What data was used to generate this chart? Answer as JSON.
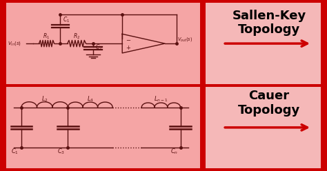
{
  "bg_color": "#f5a5a5",
  "border_color": "#cc0000",
  "right_panel_color": "#f5b8b8",
  "title1": "Sallen-Key\nTopology",
  "title2": "Cauer\nTopology",
  "title_color": "black",
  "arrow_color": "#cc0000",
  "component_color": "#5a1010",
  "figsize": [
    4.74,
    2.48
  ],
  "dpi": 100
}
